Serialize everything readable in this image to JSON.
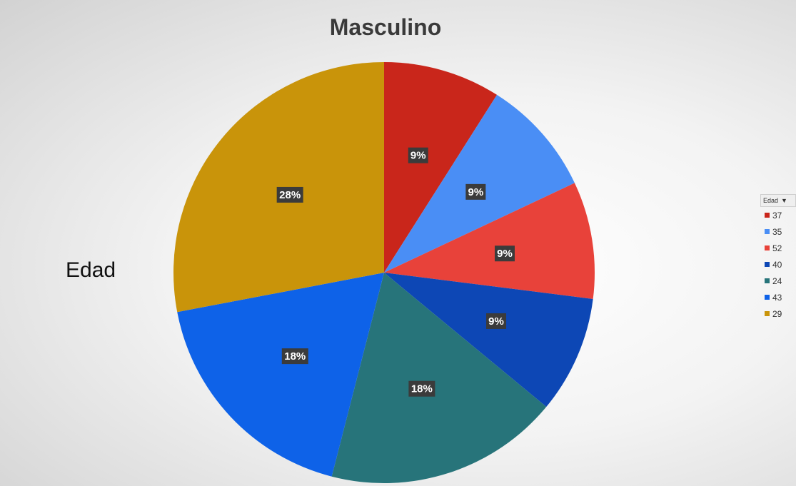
{
  "chart_data": {
    "type": "pie",
    "title": "Masculino",
    "side_label": "Edad",
    "categories": [
      "37",
      "35",
      "52",
      "40",
      "24",
      "43",
      "29"
    ],
    "values": [
      9,
      9,
      9,
      9,
      18,
      18,
      28
    ],
    "value_labels": [
      "9%",
      "9%",
      "9%",
      "9%",
      "18%",
      "18%",
      "28%"
    ],
    "colors": [
      "#c9261b",
      "#4a8ef5",
      "#e8423a",
      "#0d47b5",
      "#27747a",
      "#0e62e8",
      "#c9940a"
    ],
    "legend": {
      "header": "Edad",
      "placement": "right"
    }
  }
}
